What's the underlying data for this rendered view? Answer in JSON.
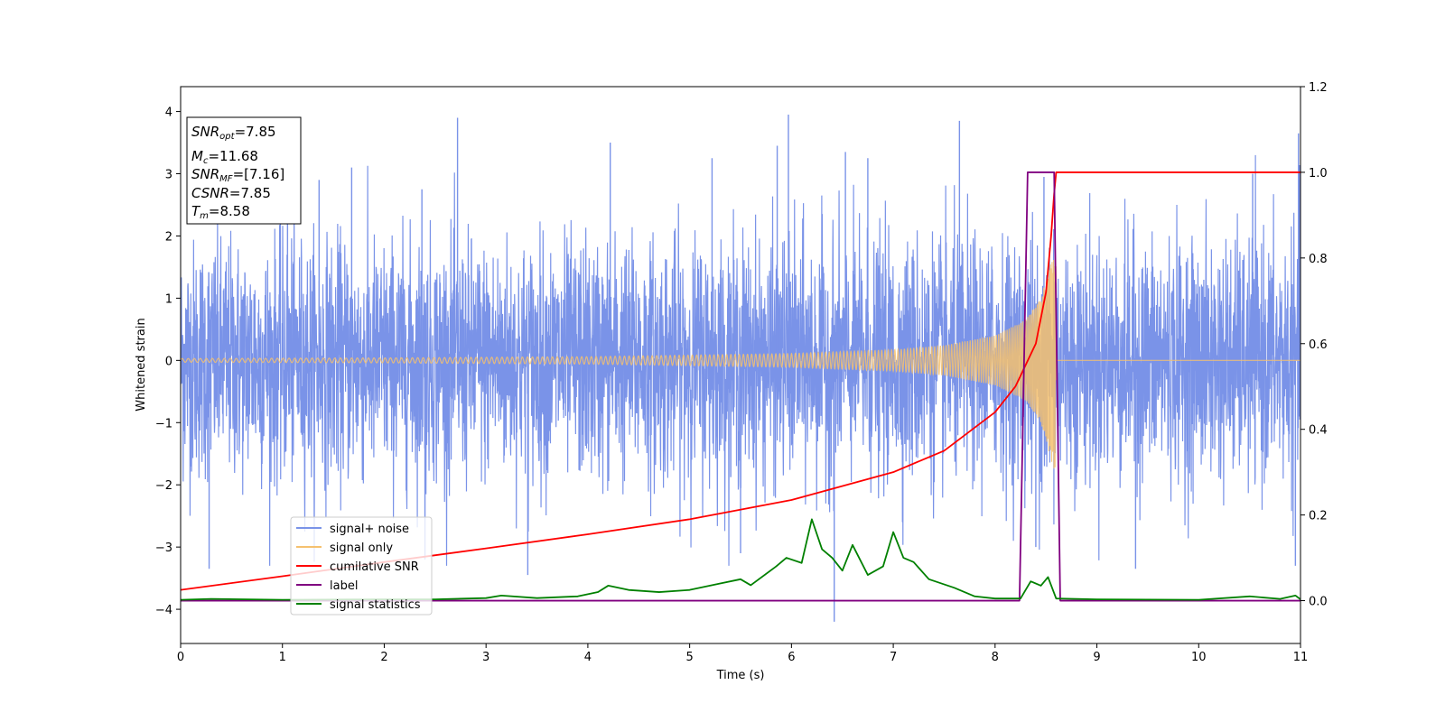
{
  "chart_data": {
    "type": "line",
    "title": "",
    "xlabel": "Time (s)",
    "ylabel": "Whitened strain",
    "xlim": [
      0,
      11
    ],
    "ylim": [
      -4.55,
      4.4
    ],
    "ylim_right": [
      -0.1,
      1.2
    ],
    "x_ticks": [
      0,
      1,
      2,
      3,
      4,
      5,
      6,
      7,
      8,
      9,
      10,
      11
    ],
    "y_ticks": [
      -4,
      -3,
      -2,
      -1,
      0,
      1,
      2,
      3,
      4
    ],
    "y_right_ticks": [
      "0.0",
      "0.2",
      "0.4",
      "0.6",
      "0.8",
      "1.0",
      "1.2"
    ],
    "grid": false,
    "legend_position": "lower-left",
    "info_box": {
      "lines": [
        {
          "sym": "SNR",
          "sub": "opt",
          "val": "=7.85"
        },
        {
          "sym": "M",
          "sub": "c",
          "val": "=11.68"
        },
        {
          "sym": "SNR",
          "sub": "MF",
          "val": "=[7.16]"
        },
        {
          "sym": "CSNR",
          "sub": "",
          "val": "=7.85"
        },
        {
          "sym": "T",
          "sub": "m",
          "val": "=8.58"
        }
      ]
    },
    "series": [
      {
        "name": "signal+ noise",
        "color": "#7a93e8",
        "axis": "left",
        "note": "Gaussian-like noise, approximately zero mean, std ~1, range about -4.2 to 4.0",
        "spikes": [
          [
            0.28,
            -3.35
          ],
          [
            1.05,
            2.9
          ],
          [
            1.36,
            2.9
          ],
          [
            1.68,
            3.1
          ],
          [
            2.37,
            2.75
          ],
          [
            2.4,
            -3.2
          ],
          [
            2.72,
            3.9
          ],
          [
            3.41,
            -3.45
          ],
          [
            4.22,
            3.5
          ],
          [
            5.22,
            3.25
          ],
          [
            5.5,
            -3.1
          ],
          [
            5.86,
            3.45
          ],
          [
            5.97,
            3.95
          ],
          [
            6.42,
            -4.2
          ],
          [
            6.53,
            3.35
          ],
          [
            6.75,
            3.25
          ],
          [
            7.65,
            3.85
          ],
          [
            8.4,
            -3.0
          ],
          [
            8.48,
            2.95
          ],
          [
            9.38,
            -3.35
          ],
          [
            10.53,
            3.0
          ],
          [
            10.95,
            -3.3
          ],
          [
            10.98,
            3.65
          ]
        ]
      },
      {
        "name": "signal only",
        "color": "#f5c16f",
        "axis": "left",
        "note": "chirp, amplitude grows with time to about 1.85 near the merger at 8.58 s, then zero",
        "envelope": [
          [
            0,
            0.03
          ],
          [
            2,
            0.04
          ],
          [
            4,
            0.06
          ],
          [
            6,
            0.11
          ],
          [
            7,
            0.17
          ],
          [
            7.5,
            0.24
          ],
          [
            8.0,
            0.4
          ],
          [
            8.3,
            0.65
          ],
          [
            8.45,
            1.0
          ],
          [
            8.55,
            1.6
          ],
          [
            8.6,
            1.85
          ]
        ]
      },
      {
        "name": "cumilative SNR",
        "color": "#ff0000",
        "axis": "right",
        "points": [
          [
            0,
            0.025
          ],
          [
            1,
            0.057
          ],
          [
            2,
            0.09
          ],
          [
            3,
            0.122
          ],
          [
            4,
            0.155
          ],
          [
            5,
            0.19
          ],
          [
            6,
            0.235
          ],
          [
            7,
            0.3
          ],
          [
            7.5,
            0.35
          ],
          [
            8.0,
            0.44
          ],
          [
            8.2,
            0.5
          ],
          [
            8.4,
            0.6
          ],
          [
            8.5,
            0.72
          ],
          [
            8.55,
            0.85
          ],
          [
            8.58,
            0.95
          ],
          [
            8.6,
            1.0
          ],
          [
            11,
            1.0
          ]
        ]
      },
      {
        "name": "label",
        "color": "#800080",
        "axis": "right",
        "points": [
          [
            0,
            0.0
          ],
          [
            8.24,
            0.0
          ],
          [
            8.32,
            1.0
          ],
          [
            8.58,
            1.0
          ],
          [
            8.64,
            0.0
          ],
          [
            11,
            0.0
          ]
        ]
      },
      {
        "name": "signal statistics",
        "color": "#008000",
        "axis": "right",
        "points": [
          [
            0,
            0.002
          ],
          [
            0.3,
            0.004
          ],
          [
            1.0,
            0.002
          ],
          [
            2.0,
            0.003
          ],
          [
            2.5,
            0.003
          ],
          [
            3.0,
            0.006
          ],
          [
            3.15,
            0.012
          ],
          [
            3.5,
            0.006
          ],
          [
            3.9,
            0.01
          ],
          [
            4.1,
            0.02
          ],
          [
            4.2,
            0.035
          ],
          [
            4.4,
            0.025
          ],
          [
            4.7,
            0.02
          ],
          [
            5.0,
            0.025
          ],
          [
            5.3,
            0.04
          ],
          [
            5.5,
            0.05
          ],
          [
            5.6,
            0.036
          ],
          [
            5.85,
            0.08
          ],
          [
            5.95,
            0.1
          ],
          [
            6.1,
            0.088
          ],
          [
            6.2,
            0.19
          ],
          [
            6.3,
            0.12
          ],
          [
            6.4,
            0.1
          ],
          [
            6.5,
            0.07
          ],
          [
            6.6,
            0.13
          ],
          [
            6.75,
            0.06
          ],
          [
            6.9,
            0.08
          ],
          [
            7.0,
            0.16
          ],
          [
            7.1,
            0.1
          ],
          [
            7.2,
            0.09
          ],
          [
            7.35,
            0.05
          ],
          [
            7.6,
            0.03
          ],
          [
            7.8,
            0.01
          ],
          [
            8.0,
            0.005
          ],
          [
            8.25,
            0.005
          ],
          [
            8.35,
            0.045
          ],
          [
            8.45,
            0.035
          ],
          [
            8.52,
            0.055
          ],
          [
            8.6,
            0.005
          ],
          [
            9.0,
            0.003
          ],
          [
            10.0,
            0.002
          ],
          [
            10.5,
            0.01
          ],
          [
            10.8,
            0.004
          ],
          [
            10.95,
            0.012
          ],
          [
            11.0,
            0.003
          ]
        ]
      }
    ]
  }
}
